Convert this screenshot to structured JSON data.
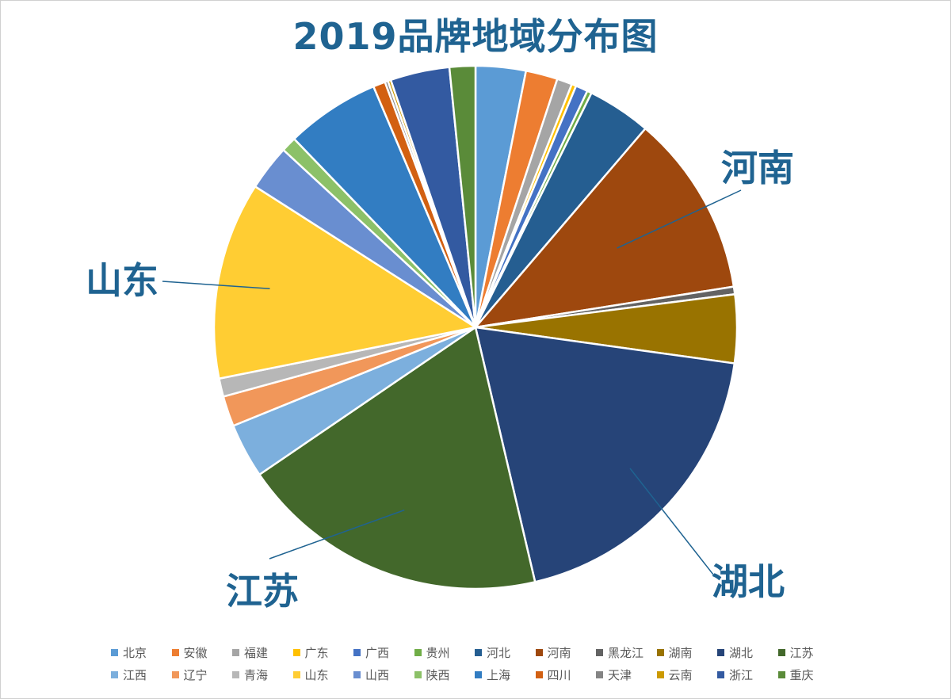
{
  "chart_data": {
    "type": "pie",
    "title": "2019品牌地域分布图",
    "slices": [
      {
        "name": "北京",
        "value": 3.3,
        "color": "#5b9bd5"
      },
      {
        "name": "安徽",
        "value": 2.1,
        "color": "#ed7d31"
      },
      {
        "name": "福建",
        "value": 1.0,
        "color": "#a5a5a5"
      },
      {
        "name": "广东",
        "value": 0.3,
        "color": "#ffc000"
      },
      {
        "name": "广西",
        "value": 0.8,
        "color": "#4472c4"
      },
      {
        "name": "贵州",
        "value": 0.3,
        "color": "#70ad47"
      },
      {
        "name": "河北",
        "value": 4.2,
        "color": "#255e91"
      },
      {
        "name": "河南",
        "value": 12.0,
        "color": "#9e480e"
      },
      {
        "name": "黑龙江",
        "value": 0.5,
        "color": "#636363"
      },
      {
        "name": "湖南",
        "value": 4.5,
        "color": "#997300"
      },
      {
        "name": "湖北",
        "value": 20.4,
        "color": "#264478"
      },
      {
        "name": "江苏",
        "value": 20.4,
        "color": "#43682b"
      },
      {
        "name": "江西",
        "value": 3.6,
        "color": "#7cafdd"
      },
      {
        "name": "辽宁",
        "value": 2.0,
        "color": "#f1975a"
      },
      {
        "name": "青海",
        "value": 1.2,
        "color": "#b7b7b7"
      },
      {
        "name": "山东",
        "value": 13.0,
        "color": "#ffcd33"
      },
      {
        "name": "山西",
        "value": 3.0,
        "color": "#698ed0"
      },
      {
        "name": "陕西",
        "value": 1.0,
        "color": "#8cc168"
      },
      {
        "name": "上海",
        "value": 6.2,
        "color": "#327dc2"
      },
      {
        "name": "四川",
        "value": 0.8,
        "color": "#d26012"
      },
      {
        "name": "天津",
        "value": 0.2,
        "color": "#848484"
      },
      {
        "name": "云南",
        "value": 0.2,
        "color": "#cc9a00"
      },
      {
        "name": "浙江",
        "value": 3.9,
        "color": "#335aa1"
      },
      {
        "name": "重庆",
        "value": 1.7,
        "color": "#5a8b39"
      }
    ],
    "callouts": [
      {
        "name": "河南"
      },
      {
        "name": "山东"
      },
      {
        "name": "湖北"
      },
      {
        "name": "江苏"
      }
    ],
    "legend_position": "bottom"
  }
}
